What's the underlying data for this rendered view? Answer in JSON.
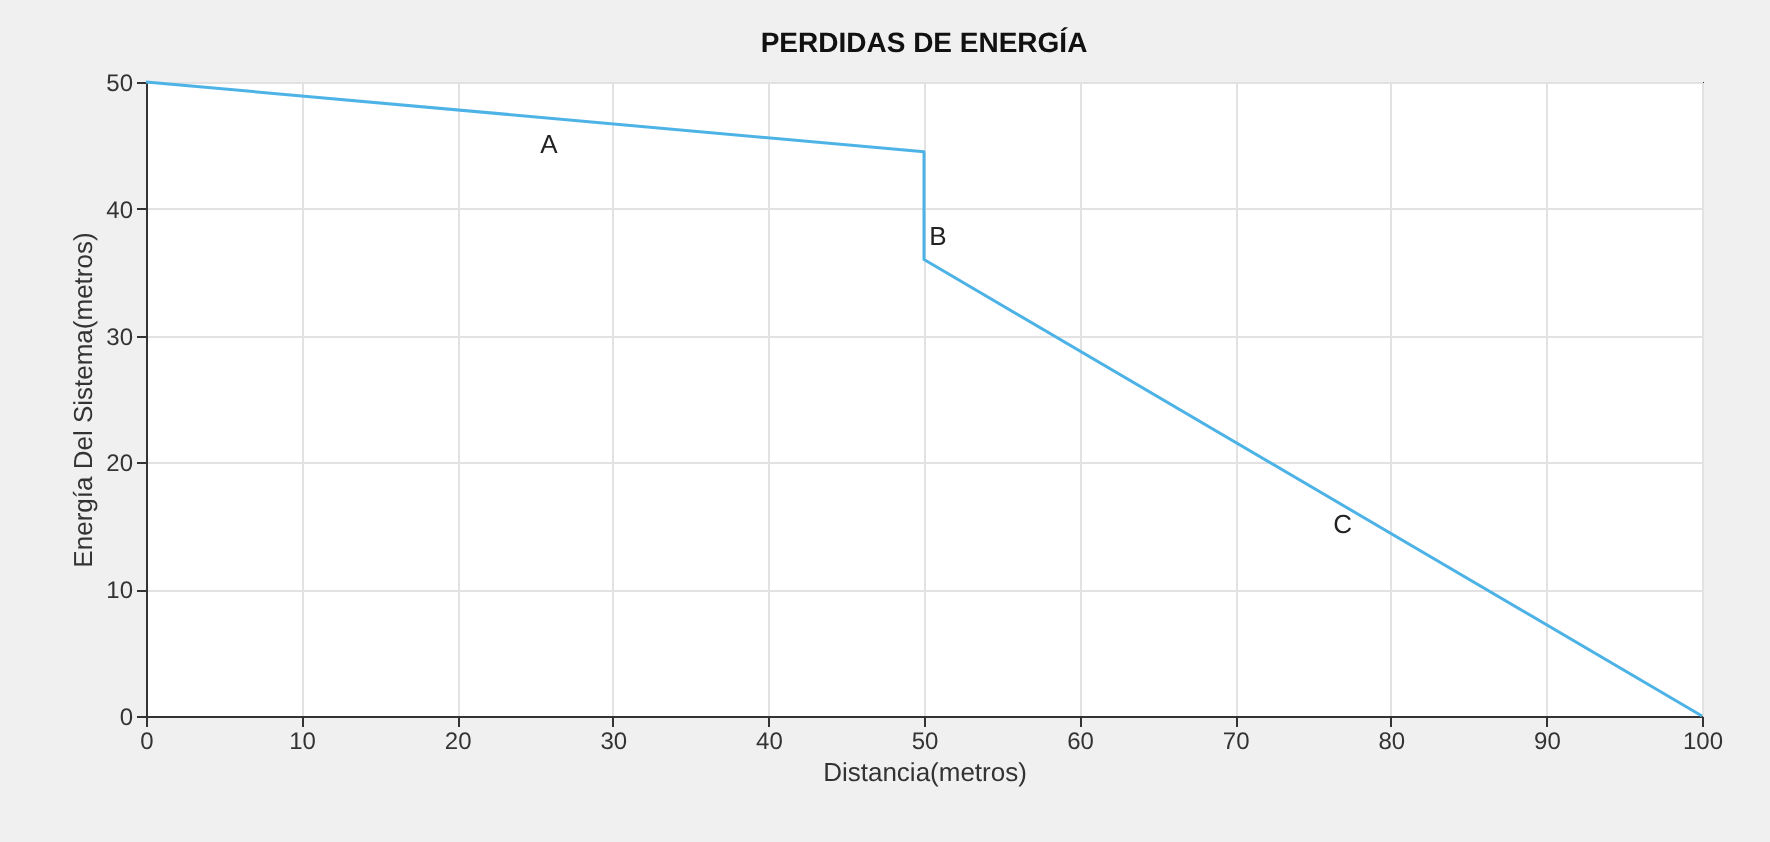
{
  "chart_data": {
    "type": "line",
    "title": "PERDIDAS DE ENERGÍA",
    "xlabel": "Distancia(metros)",
    "ylabel": "Energía Del Sistema(metros)",
    "x": [
      0,
      50,
      50,
      100
    ],
    "series": [
      {
        "color": "#4db3e6",
        "values": [
          50,
          44.5,
          36,
          0
        ]
      }
    ],
    "xlim": [
      0,
      100
    ],
    "xticks": [
      0,
      10,
      20,
      30,
      40,
      50,
      60,
      70,
      80,
      90,
      100
    ],
    "ylim": [
      0,
      50
    ],
    "yticks": [
      0,
      10,
      20,
      30,
      40,
      50
    ],
    "grid": true,
    "marker": "none",
    "line_style": "solid",
    "annotations": [
      {
        "text": "A",
        "x": 25,
        "y": 47.25
      },
      {
        "text": "B",
        "x": 50,
        "y": 40
      },
      {
        "text": "C",
        "x": 76,
        "y": 17.3
      }
    ]
  }
}
